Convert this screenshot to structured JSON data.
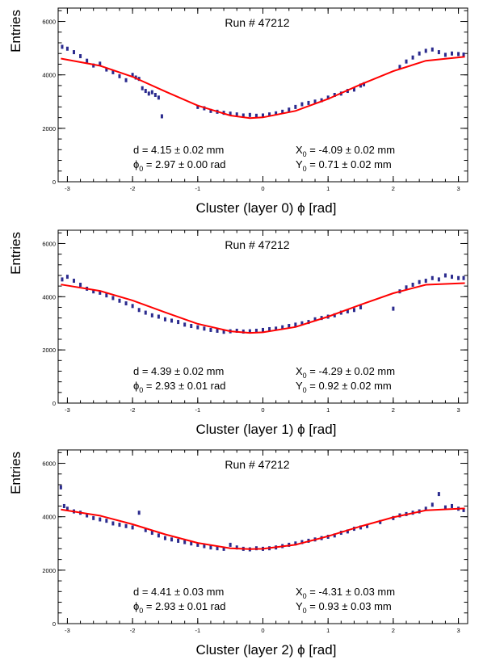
{
  "chart_data": [
    {
      "type": "scatter",
      "title": "Run # 47212",
      "xlabel_pre": "Cluster (layer 0) ",
      "xlabel_sym": "ϕ",
      "xlabel_post": " [rad]",
      "ylabel": "Entries",
      "xlim": [
        -3.14159,
        3.14159
      ],
      "ylim": [
        0,
        6500
      ],
      "xticks": [
        -3,
        -2,
        -1,
        0,
        1,
        2,
        3
      ],
      "yticks": [
        0,
        2000,
        4000,
        6000
      ],
      "fit_params": {
        "d_label": "d = ",
        "d_value": "4.15",
        "d_err": "0.02",
        "d_unit": " mm",
        "phi0_label": "ϕ",
        "phi0_sub": "0",
        "phi0_value": " = 2.97",
        "phi0_err": "0.00",
        "phi0_unit": " rad",
        "x0_label": "X",
        "x0_sub": "0",
        "x0_value": " = -4.09",
        "x0_err": "0.02",
        "x0_unit": " mm",
        "y0_label": "Y",
        "y0_sub": "0",
        "y0_value": " = 0.71",
        "y0_err": "0.02",
        "y0_unit": " mm",
        "pm": "±"
      },
      "fit_curve": {
        "x": [
          -3.1,
          -2.5,
          -2.0,
          -1.5,
          -1.0,
          -0.5,
          -0.2,
          0.0,
          0.5,
          1.0,
          1.5,
          2.0,
          2.5,
          3.1
        ],
        "y": [
          4610,
          4340,
          3930,
          3380,
          2850,
          2480,
          2380,
          2410,
          2650,
          3100,
          3640,
          4140,
          4530,
          4680
        ]
      },
      "points": {
        "x": [
          -3.08,
          -3.0,
          -2.9,
          -2.8,
          -2.7,
          -2.6,
          -2.5,
          -2.4,
          -2.3,
          -2.2,
          -2.1,
          -2.0,
          -1.95,
          -1.9,
          -1.85,
          -1.8,
          -1.75,
          -1.7,
          -1.65,
          -1.6,
          -1.55,
          -1.0,
          -0.9,
          -0.8,
          -0.7,
          -0.6,
          -0.5,
          -0.4,
          -0.3,
          -0.2,
          -0.1,
          0.0,
          0.1,
          0.2,
          0.3,
          0.4,
          0.5,
          0.6,
          0.7,
          0.8,
          0.9,
          1.0,
          1.1,
          1.2,
          1.3,
          1.4,
          1.5,
          1.55,
          2.1,
          2.2,
          2.3,
          2.4,
          2.5,
          2.6,
          2.7,
          2.8,
          2.9,
          3.0,
          3.08
        ],
        "y": [
          5050,
          4980,
          4850,
          4700,
          4530,
          4350,
          4420,
          4200,
          4100,
          3950,
          3800,
          4000,
          3900,
          3850,
          3500,
          3400,
          3300,
          3350,
          3250,
          3150,
          2450,
          2800,
          2750,
          2650,
          2620,
          2580,
          2550,
          2520,
          2480,
          2500,
          2470,
          2480,
          2520,
          2560,
          2620,
          2700,
          2800,
          2900,
          2950,
          3000,
          3050,
          3150,
          3250,
          3300,
          3400,
          3450,
          3600,
          3650,
          4300,
          4500,
          4650,
          4800,
          4900,
          4950,
          4850,
          4750,
          4800,
          4780,
          4760
        ]
      }
    },
    {
      "type": "scatter",
      "title": "Run # 47212",
      "xlabel_pre": "Cluster (layer 1) ",
      "xlabel_sym": "ϕ",
      "xlabel_post": " [rad]",
      "ylabel": "Entries",
      "xlim": [
        -3.14159,
        3.14159
      ],
      "ylim": [
        0,
        6500
      ],
      "xticks": [
        -3,
        -2,
        -1,
        0,
        1,
        2,
        3
      ],
      "yticks": [
        0,
        2000,
        4000,
        6000
      ],
      "fit_params": {
        "d_label": "d = ",
        "d_value": "4.39",
        "d_err": "0.02",
        "d_unit": " mm",
        "phi0_label": "ϕ",
        "phi0_sub": "0",
        "phi0_value": " = 2.93",
        "phi0_err": "0.01",
        "phi0_unit": " rad",
        "x0_label": "X",
        "x0_sub": "0",
        "x0_value": " = -4.29",
        "x0_err": "0.02",
        "x0_unit": " mm",
        "y0_label": "Y",
        "y0_sub": "0",
        "y0_value": " = 0.92",
        "y0_err": "0.02",
        "y0_unit": " mm",
        "pm": "±"
      },
      "fit_curve": {
        "x": [
          -3.1,
          -2.5,
          -2.0,
          -1.5,
          -1.0,
          -0.5,
          -0.2,
          0.0,
          0.5,
          1.0,
          1.5,
          2.0,
          2.5,
          3.1
        ],
        "y": [
          4460,
          4220,
          3860,
          3410,
          2980,
          2700,
          2640,
          2660,
          2860,
          3250,
          3700,
          4130,
          4450,
          4510
        ]
      },
      "points": {
        "x": [
          -3.08,
          -3.0,
          -2.9,
          -2.8,
          -2.7,
          -2.6,
          -2.5,
          -2.4,
          -2.3,
          -2.2,
          -2.1,
          -2.0,
          -1.9,
          -1.8,
          -1.7,
          -1.6,
          -1.5,
          -1.4,
          -1.3,
          -1.2,
          -1.1,
          -1.0,
          -0.9,
          -0.8,
          -0.7,
          -0.6,
          -0.5,
          -0.4,
          -0.3,
          -0.2,
          -0.1,
          0.0,
          0.1,
          0.2,
          0.3,
          0.4,
          0.5,
          0.6,
          0.7,
          0.8,
          0.9,
          1.0,
          1.1,
          1.2,
          1.3,
          1.4,
          1.5,
          2.0,
          2.1,
          2.2,
          2.3,
          2.4,
          2.5,
          2.6,
          2.7,
          2.8,
          2.9,
          3.0,
          3.08
        ],
        "y": [
          4650,
          4750,
          4600,
          4450,
          4300,
          4200,
          4150,
          4050,
          3950,
          3850,
          3750,
          3650,
          3500,
          3400,
          3300,
          3250,
          3150,
          3100,
          3050,
          2950,
          2900,
          2850,
          2800,
          2750,
          2720,
          2680,
          2700,
          2720,
          2690,
          2700,
          2720,
          2750,
          2780,
          2800,
          2850,
          2900,
          2950,
          3000,
          3050,
          3150,
          3200,
          3250,
          3300,
          3400,
          3450,
          3500,
          3600,
          3550,
          4200,
          4350,
          4450,
          4550,
          4600,
          4700,
          4650,
          4800,
          4750,
          4700,
          4700
        ]
      }
    },
    {
      "type": "scatter",
      "title": "Run # 47212",
      "xlabel_pre": "Cluster (layer 2) ",
      "xlabel_sym": "ϕ",
      "xlabel_post": " [rad]",
      "ylabel": "Entries",
      "xlim": [
        -3.14159,
        3.14159
      ],
      "ylim": [
        0,
        6500
      ],
      "xticks": [
        -3,
        -2,
        -1,
        0,
        1,
        2,
        3
      ],
      "yticks": [
        0,
        2000,
        4000,
        6000
      ],
      "fit_params": {
        "d_label": "d = ",
        "d_value": "4.41",
        "d_err": "0.03",
        "d_unit": " mm",
        "phi0_label": "ϕ",
        "phi0_sub": "0",
        "phi0_value": " = 2.93",
        "phi0_err": "0.01",
        "phi0_unit": " rad",
        "x0_label": "X",
        "x0_sub": "0",
        "x0_value": " = -4.31",
        "x0_err": "0.03",
        "x0_unit": " mm",
        "y0_label": "Y",
        "y0_sub": "0",
        "y0_value": " = 0.93",
        "y0_err": "0.03",
        "y0_unit": " mm",
        "pm": "±"
      },
      "fit_curve": {
        "x": [
          -3.1,
          -2.5,
          -2.0,
          -1.5,
          -1.0,
          -0.5,
          -0.2,
          0.0,
          0.5,
          1.0,
          1.5,
          2.0,
          2.5,
          3.1
        ],
        "y": [
          4270,
          4040,
          3720,
          3340,
          3020,
          2820,
          2790,
          2800,
          2950,
          3270,
          3640,
          3980,
          4240,
          4310
        ]
      },
      "points": {
        "x": [
          -3.1,
          -3.05,
          -3.0,
          -2.9,
          -2.8,
          -2.7,
          -2.6,
          -2.5,
          -2.4,
          -2.3,
          -2.2,
          -2.1,
          -2.0,
          -1.9,
          -1.8,
          -1.7,
          -1.6,
          -1.5,
          -1.4,
          -1.3,
          -1.2,
          -1.1,
          -1.0,
          -0.9,
          -0.8,
          -0.7,
          -0.6,
          -0.5,
          -0.4,
          -0.3,
          -0.2,
          -0.1,
          0.0,
          0.1,
          0.2,
          0.3,
          0.4,
          0.5,
          0.6,
          0.7,
          0.8,
          0.9,
          1.0,
          1.1,
          1.2,
          1.3,
          1.4,
          1.5,
          1.6,
          1.8,
          2.0,
          2.1,
          2.2,
          2.3,
          2.4,
          2.5,
          2.6,
          2.7,
          2.8,
          2.9,
          3.0,
          3.08
        ],
        "y": [
          5100,
          4400,
          4300,
          4200,
          4150,
          4050,
          3950,
          3900,
          3850,
          3750,
          3700,
          3650,
          3600,
          4150,
          3500,
          3400,
          3300,
          3200,
          3150,
          3100,
          3050,
          3000,
          2950,
          2900,
          2850,
          2820,
          2800,
          2950,
          2850,
          2800,
          2780,
          2820,
          2800,
          2820,
          2850,
          2900,
          2950,
          3000,
          3050,
          3100,
          3150,
          3200,
          3250,
          3300,
          3400,
          3450,
          3550,
          3600,
          3650,
          3800,
          3950,
          4050,
          4100,
          4150,
          4200,
          4300,
          4450,
          4850,
          4350,
          4400,
          4300,
          4250
        ]
      }
    }
  ]
}
